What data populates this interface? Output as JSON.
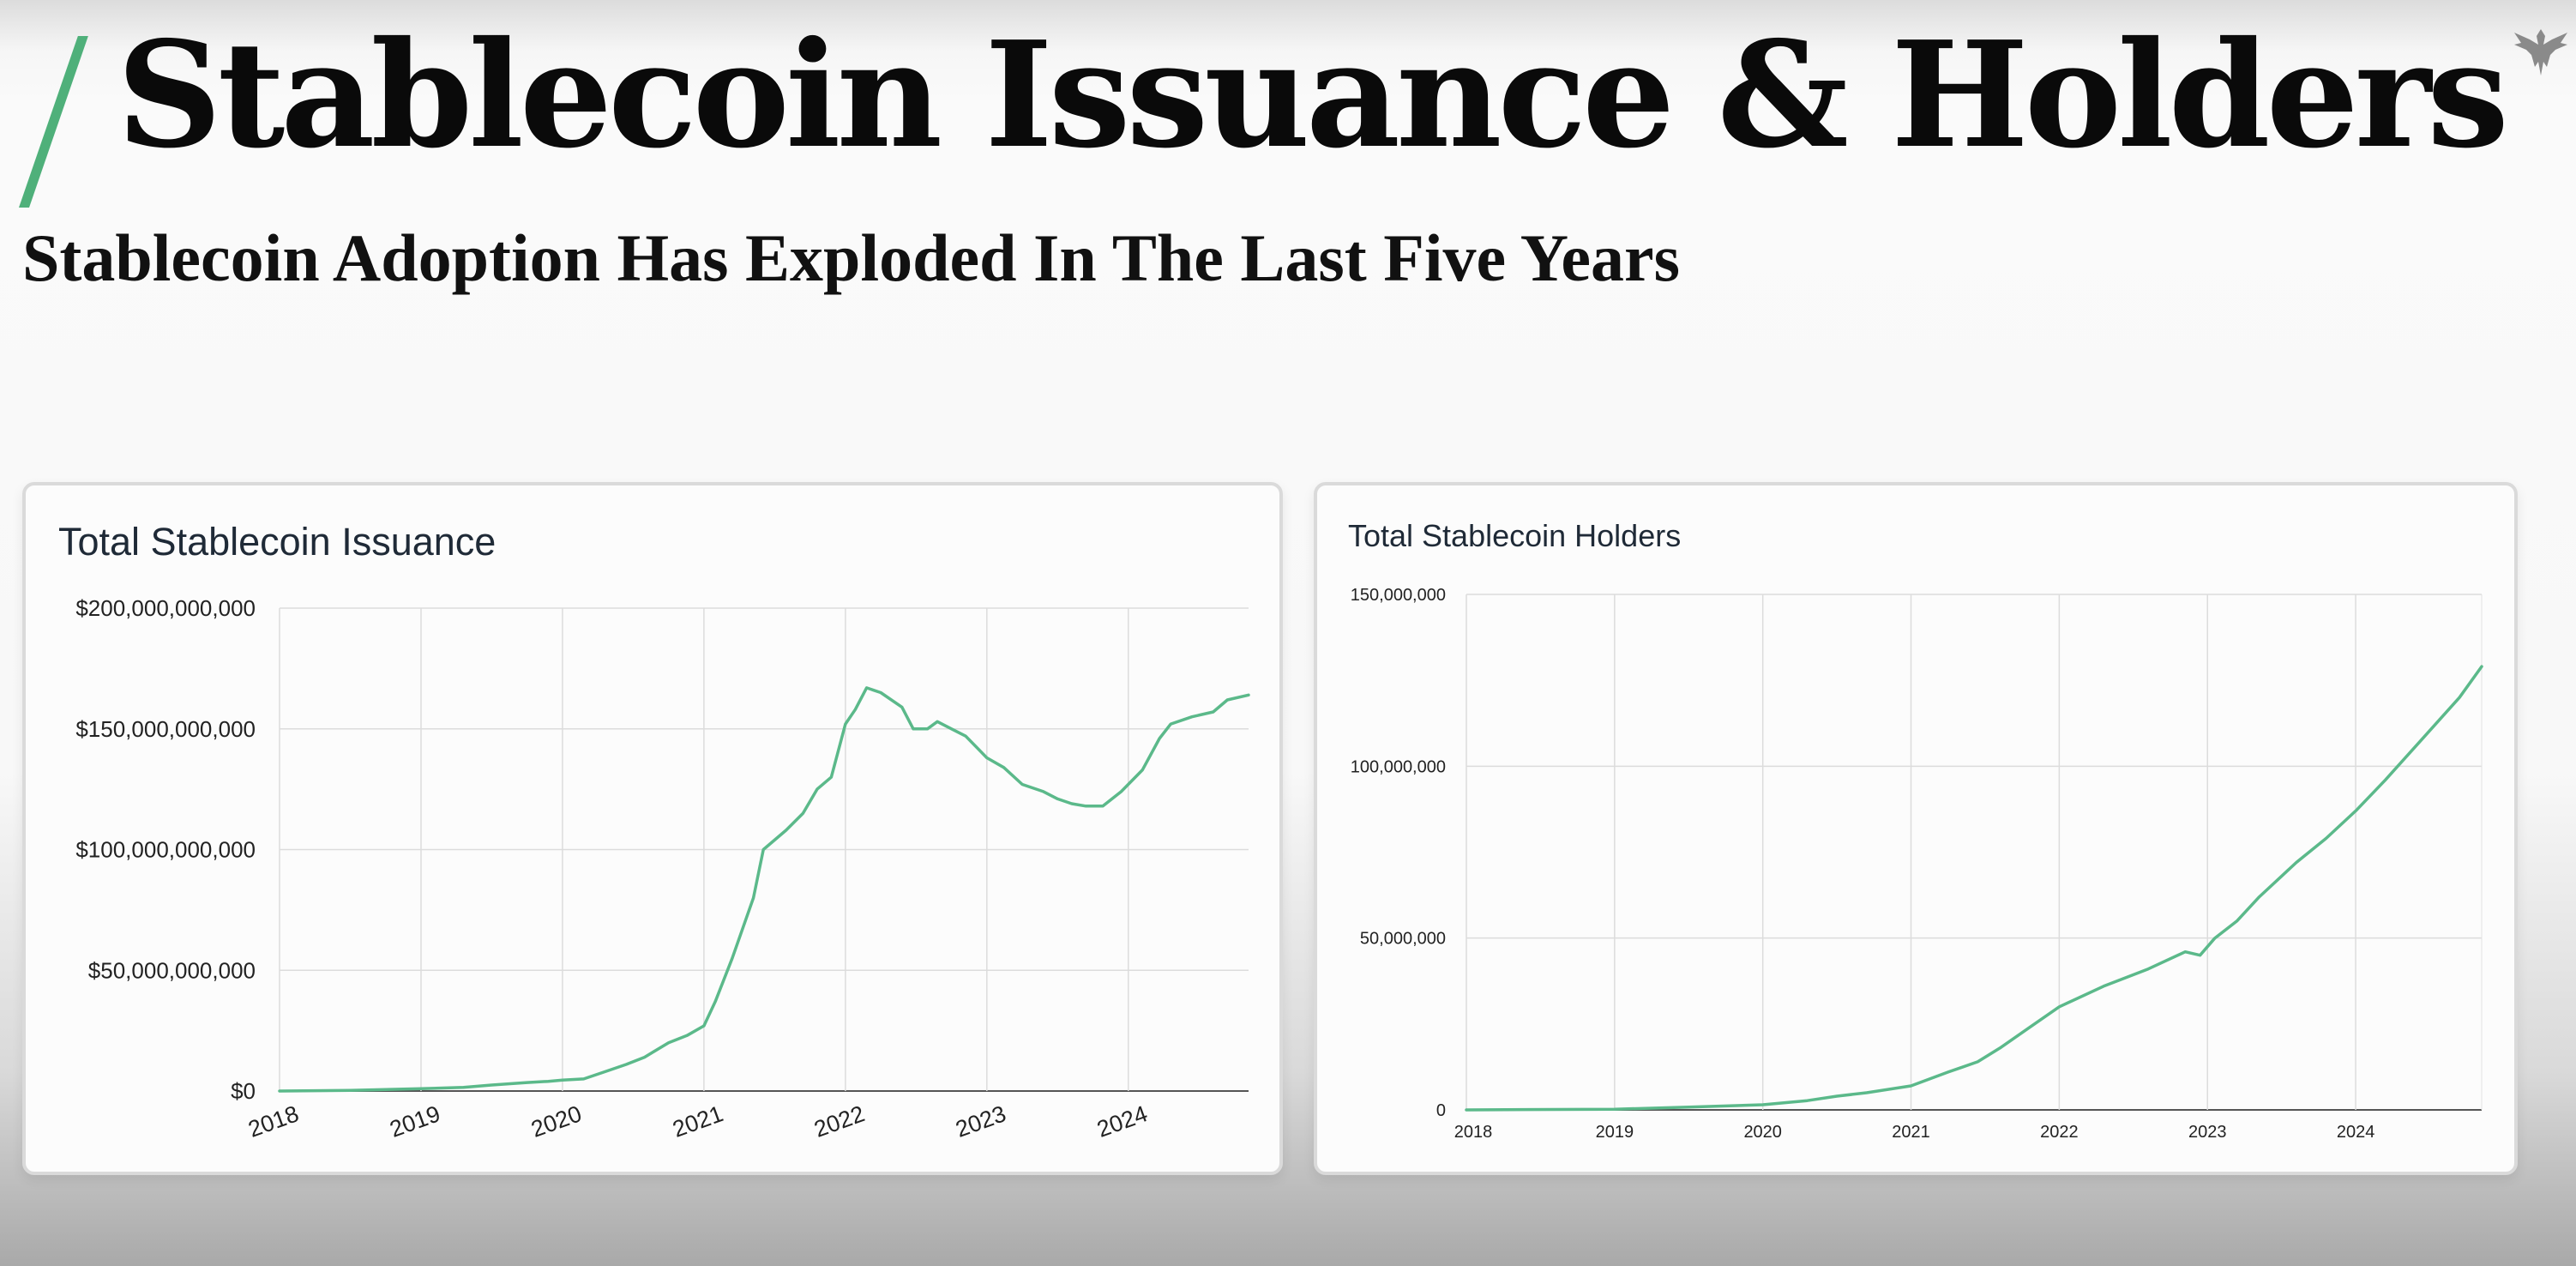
{
  "header": {
    "title": "Stablecoin Issuance & Holders",
    "subtitle": "Stablecoin Adoption Has Exploded In The Last Five Years",
    "logo_icon": "eagle-icon",
    "accent_color": "#4fb07a"
  },
  "chart_data": [
    {
      "type": "line",
      "title": "Total Stablecoin Issuance",
      "xlabel": "",
      "ylabel": "",
      "x_ticks": [
        "2018",
        "2019",
        "2020",
        "2021",
        "2022",
        "2023",
        "2024"
      ],
      "y_ticks": [
        "$0",
        "$50,000,000,000",
        "$100,000,000,000",
        "$150,000,000,000",
        "$200,000,000,000"
      ],
      "xlim": [
        2018,
        2024.85
      ],
      "ylim": [
        0,
        200000000000
      ],
      "grid": true,
      "series": [
        {
          "color": "#5bb98a",
          "x": [
            2018,
            2018.5,
            2019,
            2019.3,
            2019.5,
            2019.75,
            2019.9,
            2020.0,
            2020.15,
            2020.3,
            2020.45,
            2020.58,
            2020.75,
            2020.88,
            2021.0,
            2021.08,
            2021.2,
            2021.35,
            2021.42,
            2021.58,
            2021.7,
            2021.8,
            2021.9,
            2022.0,
            2022.07,
            2022.15,
            2022.25,
            2022.4,
            2022.48,
            2022.58,
            2022.65,
            2022.75,
            2022.85,
            2023.0,
            2023.12,
            2023.25,
            2023.4,
            2023.5,
            2023.6,
            2023.7,
            2023.82,
            2023.95,
            2024.1,
            2024.22,
            2024.3,
            2024.45,
            2024.6,
            2024.7,
            2024.85
          ],
          "y": [
            0,
            300000000,
            1000000000,
            1500000000,
            2500000000,
            3500000000,
            4000000000,
            4500000000,
            5000000000,
            8000000000,
            11000000000,
            14000000000,
            20000000000,
            23000000000,
            27000000000,
            37000000000,
            55000000000,
            80000000000,
            100000000000,
            108000000000,
            115000000000,
            125000000000,
            130000000000,
            152000000000,
            158000000000,
            167000000000,
            165000000000,
            159000000000,
            150000000000,
            150000000000,
            153000000000,
            150000000000,
            147000000000,
            138000000000,
            134000000000,
            127000000000,
            124000000000,
            121000000000,
            119000000000,
            118000000000,
            118000000000,
            124000000000,
            133000000000,
            146000000000,
            152000000000,
            155000000000,
            157000000000,
            162000000000,
            164000000000
          ]
        }
      ]
    },
    {
      "type": "line",
      "title": "Total Stablecoin Holders",
      "xlabel": "",
      "ylabel": "",
      "x_ticks": [
        "2018",
        "2019",
        "2020",
        "2021",
        "2022",
        "2023",
        "2024"
      ],
      "y_ticks": [
        "0",
        "50,000,000",
        "100,000,000",
        "150,000,000"
      ],
      "xlim": [
        2018,
        2024.85
      ],
      "ylim": [
        0,
        150000000
      ],
      "grid": true,
      "series": [
        {
          "color": "#5bb98a",
          "x": [
            2018,
            2019,
            2019.5,
            2020,
            2020.3,
            2020.5,
            2020.7,
            2021,
            2021.25,
            2021.45,
            2021.6,
            2021.8,
            2022,
            2022.3,
            2022.6,
            2022.85,
            2022.95,
            2023.05,
            2023.2,
            2023.35,
            2023.6,
            2023.8,
            2024,
            2024.2,
            2024.45,
            2024.7,
            2024.85
          ],
          "y": [
            0,
            200000,
            800000,
            1500000,
            2700000,
            4000000,
            5000000,
            7000000,
            11000000,
            14000000,
            18000000,
            24000000,
            30000000,
            36000000,
            41000000,
            46000000,
            45000000,
            50000000,
            55000000,
            62000000,
            72000000,
            79000000,
            87000000,
            96000000,
            108000000,
            120000000,
            129000000
          ]
        }
      ]
    }
  ]
}
